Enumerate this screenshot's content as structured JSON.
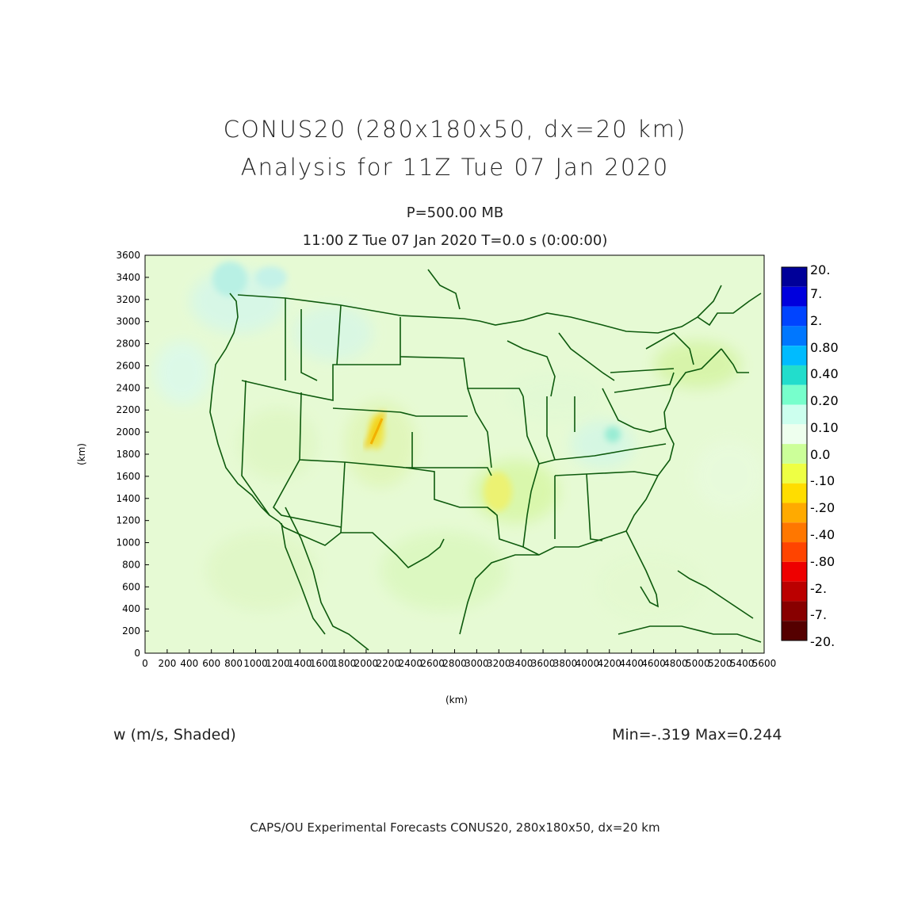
{
  "title": {
    "line1": "CONUS20 (280x180x50, dx=20 km)",
    "line2": "Analysis for 11Z Tue 07 Jan 2020"
  },
  "subtitle": {
    "level": "P=500.00 MB",
    "time": "11:00 Z Tue 07 Jan 2020    T=0.0 s (0:00:00)"
  },
  "axes": {
    "x_label": "(km)",
    "y_label": "(km)",
    "x_ticks": [
      "0",
      "200",
      "400",
      "600",
      "800",
      "1000",
      "1200",
      "1400",
      "1600",
      "1800",
      "2000",
      "2200",
      "2400",
      "2600",
      "2800",
      "3000",
      "3200",
      "3400",
      "3600",
      "3800",
      "4000",
      "4200",
      "4400",
      "4600",
      "4800",
      "5000",
      "5200",
      "5400",
      "5600"
    ],
    "y_ticks": [
      "0",
      "200",
      "400",
      "600",
      "800",
      "1000",
      "1200",
      "1400",
      "1600",
      "1800",
      "2000",
      "2200",
      "2400",
      "2600",
      "2800",
      "3000",
      "3200",
      "3400",
      "3600"
    ],
    "x_range": [
      0,
      5600
    ],
    "y_range": [
      0,
      3600
    ]
  },
  "legend": {
    "colors": [
      "#000099",
      "#0000dd",
      "#0044ff",
      "#0077ff",
      "#00bbff",
      "#22ddcc",
      "#77ffcc",
      "#ccffee",
      "#eeffee",
      "#ccff99",
      "#eeff44",
      "#ffdd00",
      "#ffaa00",
      "#ff7700",
      "#ff4400",
      "#ee0000",
      "#bb0000",
      "#880000",
      "#550000"
    ],
    "labels": [
      "20.",
      "7.",
      "2.",
      "0.80",
      "0.40",
      "0.20",
      "0.10",
      "0.0",
      "-.10",
      "-.20",
      "-.40",
      "-.80",
      "-2.",
      "-7.",
      "-20."
    ]
  },
  "field_label": "w (m/s, Shaded)",
  "min_max": "Min=-.319  Max=0.244",
  "credit": "CAPS/OU Experimental Forecasts  CONUS20, 280x180x50, dx=20 km"
}
